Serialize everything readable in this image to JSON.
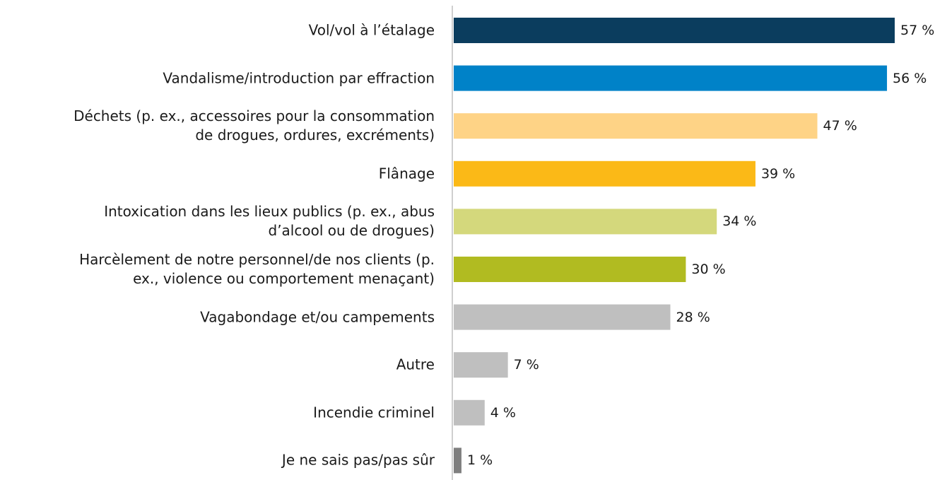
{
  "chart_data": {
    "type": "bar",
    "orientation": "horizontal",
    "categories": [
      "Vol/vol à l’étalage",
      "Vandalisme/introduction par effraction",
      "Déchets (p. ex., accessoires pour la consommation\nde drogues, ordures, excréments)",
      "Flânage",
      "Intoxication dans les lieux publics (p. ex., abus\nd’alcool ou de drogues)",
      "Harcèlement de notre personnel/de nos clients (p.\nex., violence ou comportement menaçant)",
      "Vagabondage et/ou campements",
      "Autre",
      "Incendie criminel",
      "Je ne sais pas/pas sûr"
    ],
    "values": [
      57,
      56,
      47,
      39,
      34,
      30,
      28,
      7,
      4,
      1
    ],
    "value_labels": [
      "57 %",
      "56 %",
      "47 %",
      "39 %",
      "34 %",
      "30 %",
      "28 %",
      "7 %",
      "4 %",
      "1 %"
    ],
    "colors": [
      "#0b3d5e",
      "#0082c8",
      "#fed386",
      "#fbb917",
      "#d4d87c",
      "#b1bb21",
      "#bfbfbf",
      "#bfbfbf",
      "#bfbfbf",
      "#7f7f7f"
    ]
  }
}
